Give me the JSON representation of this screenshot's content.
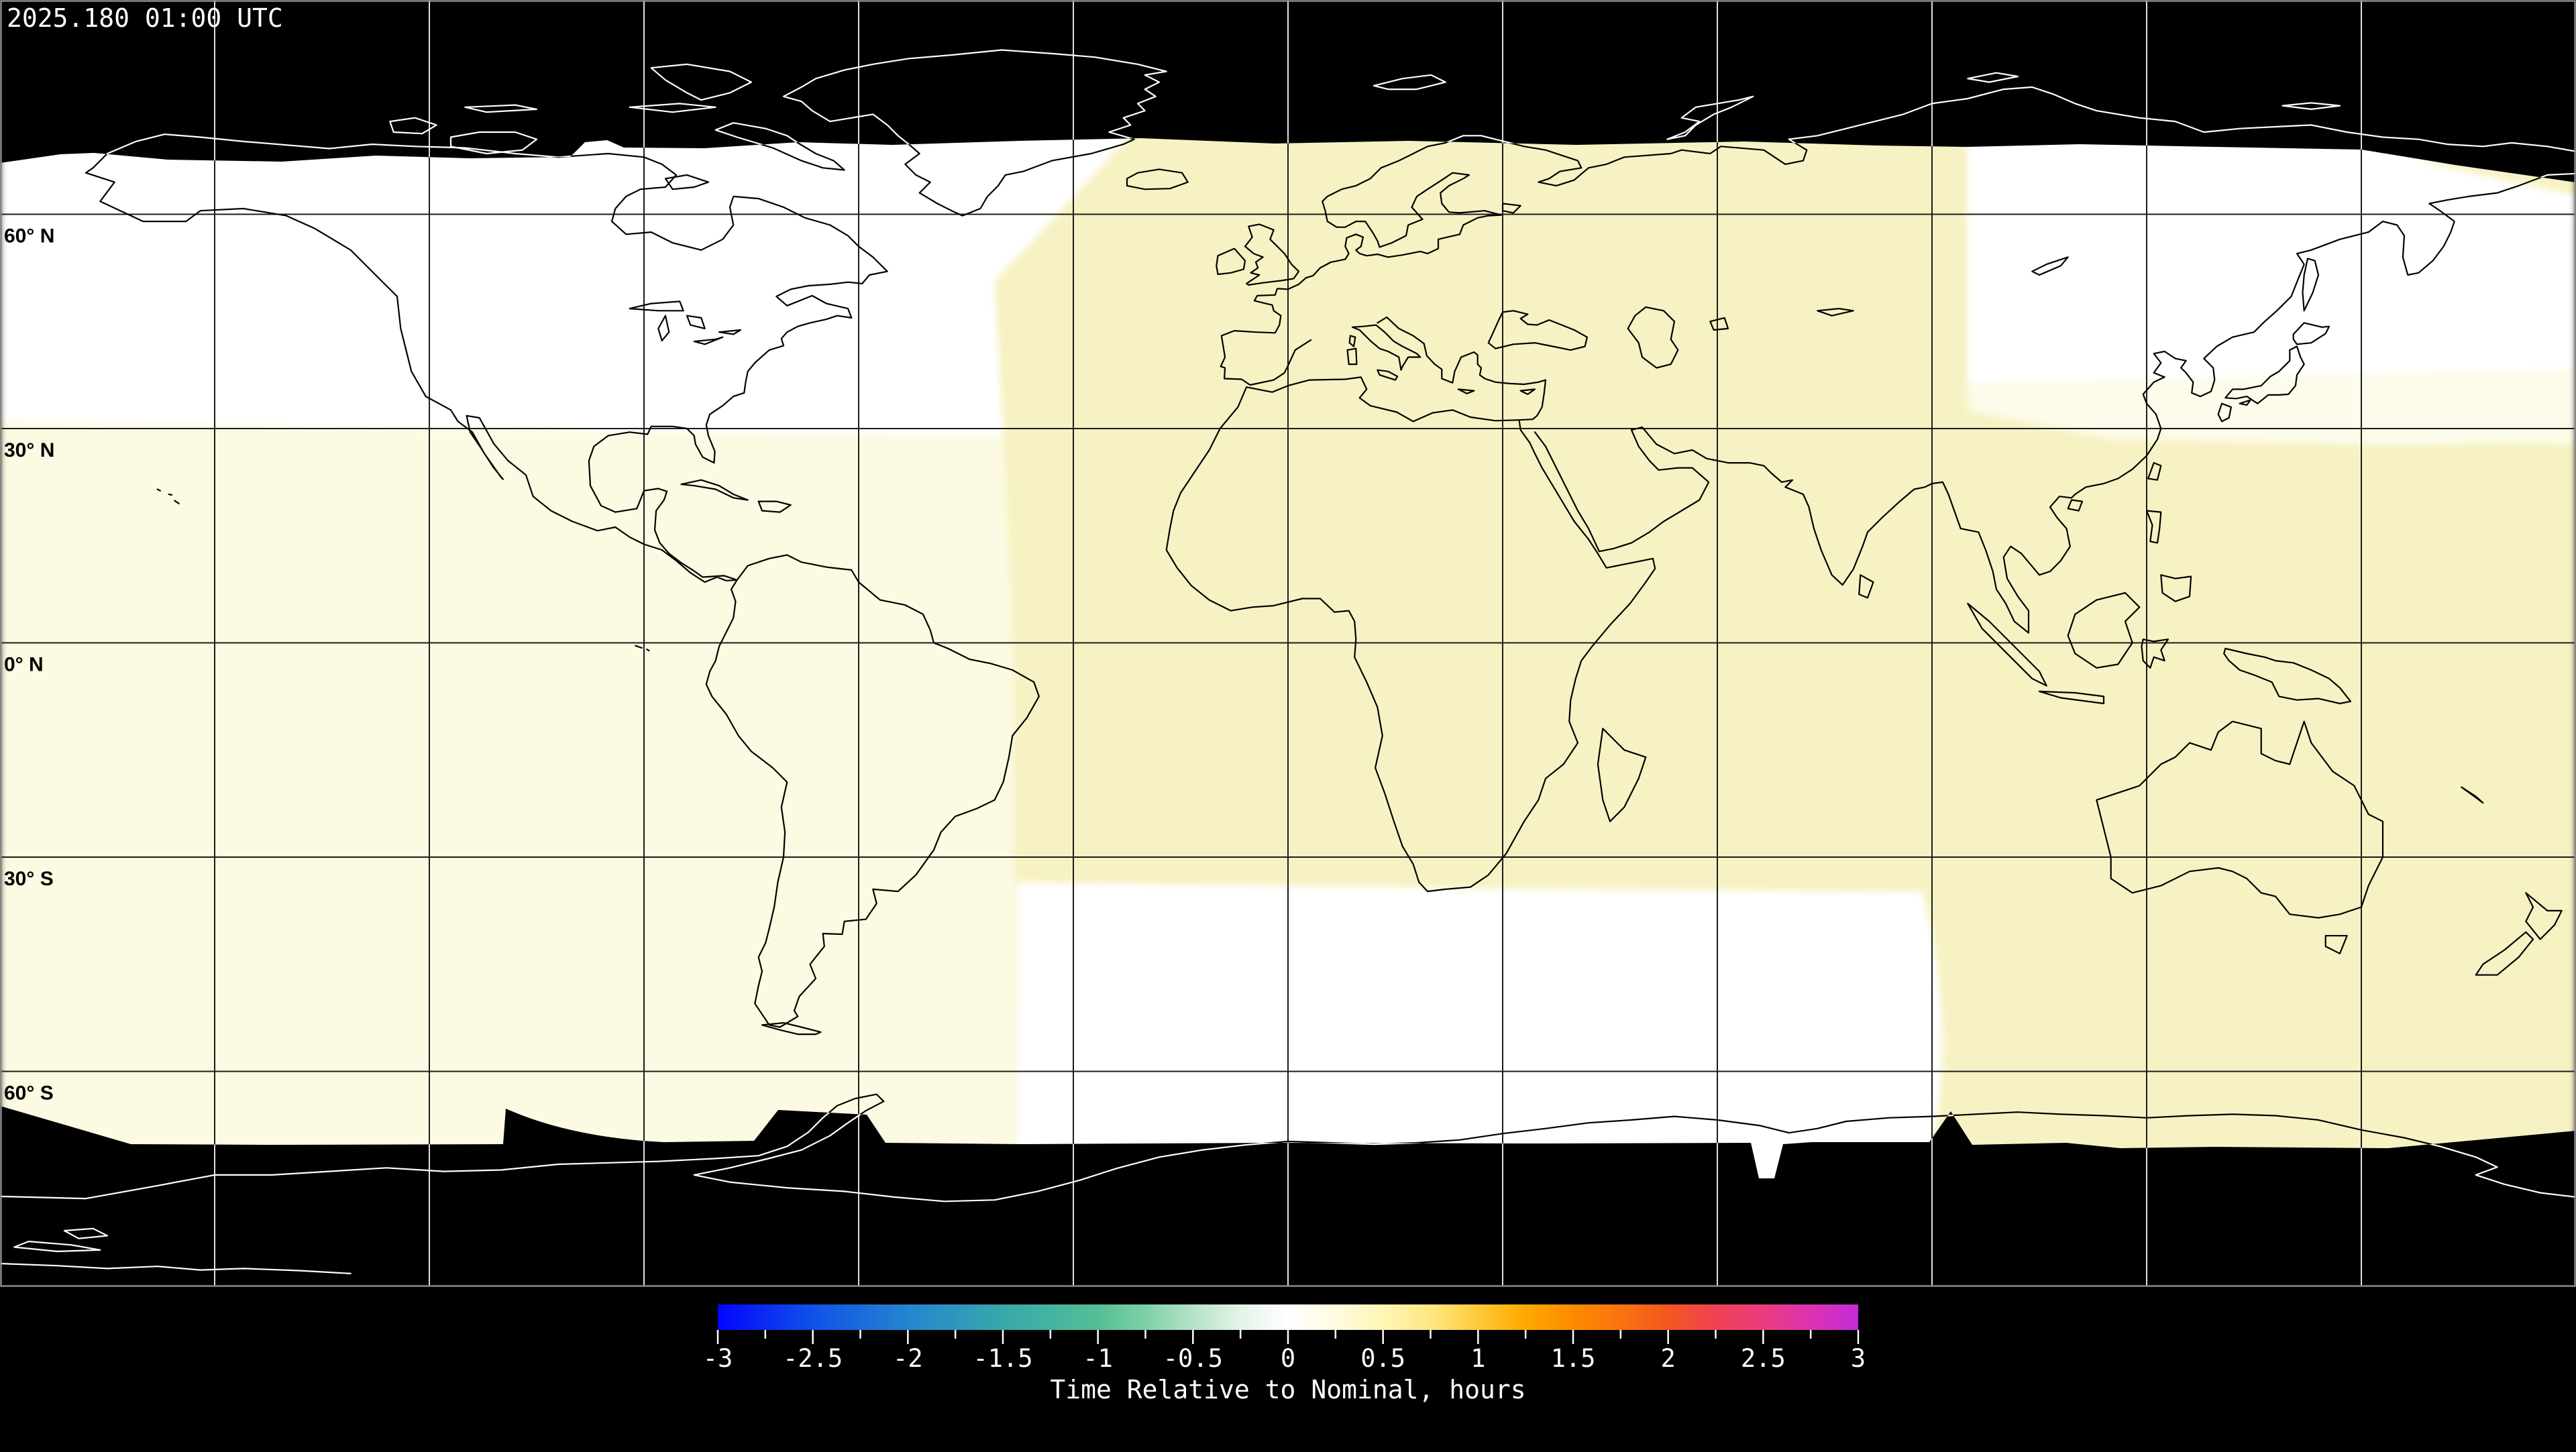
{
  "header": {
    "timestamp": "2025.180 01:00 UTC"
  },
  "map": {
    "projection": "equirectangular",
    "lon_range": [
      -180,
      180
    ],
    "lat_range": [
      -90,
      90
    ],
    "graticule_spacing_deg": 30,
    "lat_labels": [
      {
        "text": "60° N",
        "lat": 60
      },
      {
        "text": "30° N",
        "lat": 30
      },
      {
        "text": "0° N",
        "lat": 0
      },
      {
        "text": "30° S",
        "lat": -30
      },
      {
        "text": "60° S",
        "lat": -60
      }
    ]
  },
  "colorbar": {
    "caption": "Time Relative to Nominal, hours",
    "min": -3,
    "max": 3,
    "major_tick_step": 0.5,
    "minor_tick_step": 0.25,
    "tick_labels": [
      "-3",
      "-2.5",
      "-2",
      "-1.5",
      "-1",
      "-0.5",
      "0",
      "0.5",
      "1",
      "1.5",
      "2",
      "2.5",
      "3"
    ],
    "gradient_stops": [
      [
        0.0,
        "#0404fc"
      ],
      [
        0.083,
        "#0f52e8"
      ],
      [
        0.167,
        "#2585cf"
      ],
      [
        0.25,
        "#38a8ab"
      ],
      [
        0.333,
        "#52bf96"
      ],
      [
        0.375,
        "#7fd0a6"
      ],
      [
        0.417,
        "#b5e3c8"
      ],
      [
        0.458,
        "#e3f4e8"
      ],
      [
        0.5,
        "#ffffff"
      ],
      [
        0.542,
        "#fffbe0"
      ],
      [
        0.583,
        "#fff5b5"
      ],
      [
        0.625,
        "#ffe882"
      ],
      [
        0.667,
        "#fdc938"
      ],
      [
        0.708,
        "#ffa800"
      ],
      [
        0.75,
        "#fb8b00"
      ],
      [
        0.792,
        "#f97311"
      ],
      [
        0.833,
        "#f4571e"
      ],
      [
        0.875,
        "#ef4253"
      ],
      [
        0.917,
        "#ec3c80"
      ],
      [
        0.958,
        "#dc32b0"
      ],
      [
        1.0,
        "#c32bd8"
      ]
    ]
  },
  "colors": {
    "background": "#000000",
    "no_data": "#000000",
    "data_white": "#ffffff",
    "swath_yellow": "#f7f2c3",
    "swath_pale_yellow": "#fcfae2",
    "ivory_band": "#fdfbe9",
    "grid_on_data": "#1c1c1c",
    "grid_on_nodata": "#e0e0e0",
    "coast_on_data": "#000000",
    "coast_on_nodata": "#ffffff",
    "frame": "#8a8a8a",
    "text_light": "#ffffff",
    "text_dark": "#000000"
  },
  "chart_data": {
    "type": "heatmap",
    "title": "2025.180 01:00 UTC",
    "colorbar_label": "Time Relative to Nominal, hours",
    "value_range_hours": [
      -3,
      3
    ],
    "tick_values": [
      -3,
      -2.5,
      -2,
      -1.5,
      -1,
      -0.5,
      0,
      0.5,
      1,
      1.5,
      2,
      2.5,
      3
    ],
    "projection": "equirectangular world map, graticule every 30 degrees",
    "legend_position": "bottom center",
    "regions": [
      {
        "area": "North America / North Pacific, north of ~30N",
        "value_hours": 0.0
      },
      {
        "area": "Americas & eastern Pacific swath (~180W-38W, 30N to data edge ~72S)",
        "value_hours": 0.1
      },
      {
        "area": "Europe / Africa / western Asia swath (~38W-95E, ~70N-20S)",
        "value_hours": 0.3
      },
      {
        "area": "South Atlantic & Indian Ocean block (~38W-90E, ~22S-72S)",
        "value_hours": 0.0
      },
      {
        "area": "Northeast Asia / NW Pacific lobe (~95E-180E, ~28N-69N)",
        "value_hours": 0.0
      },
      {
        "area": "Australia / western Pacific swath (~90E-180E, ~25N-72S)",
        "value_hours": 0.3
      },
      {
        "area": "Polar caps (north of ~70N and south of ~72S)",
        "value_hours": null,
        "note": "no data (black)"
      }
    ]
  }
}
